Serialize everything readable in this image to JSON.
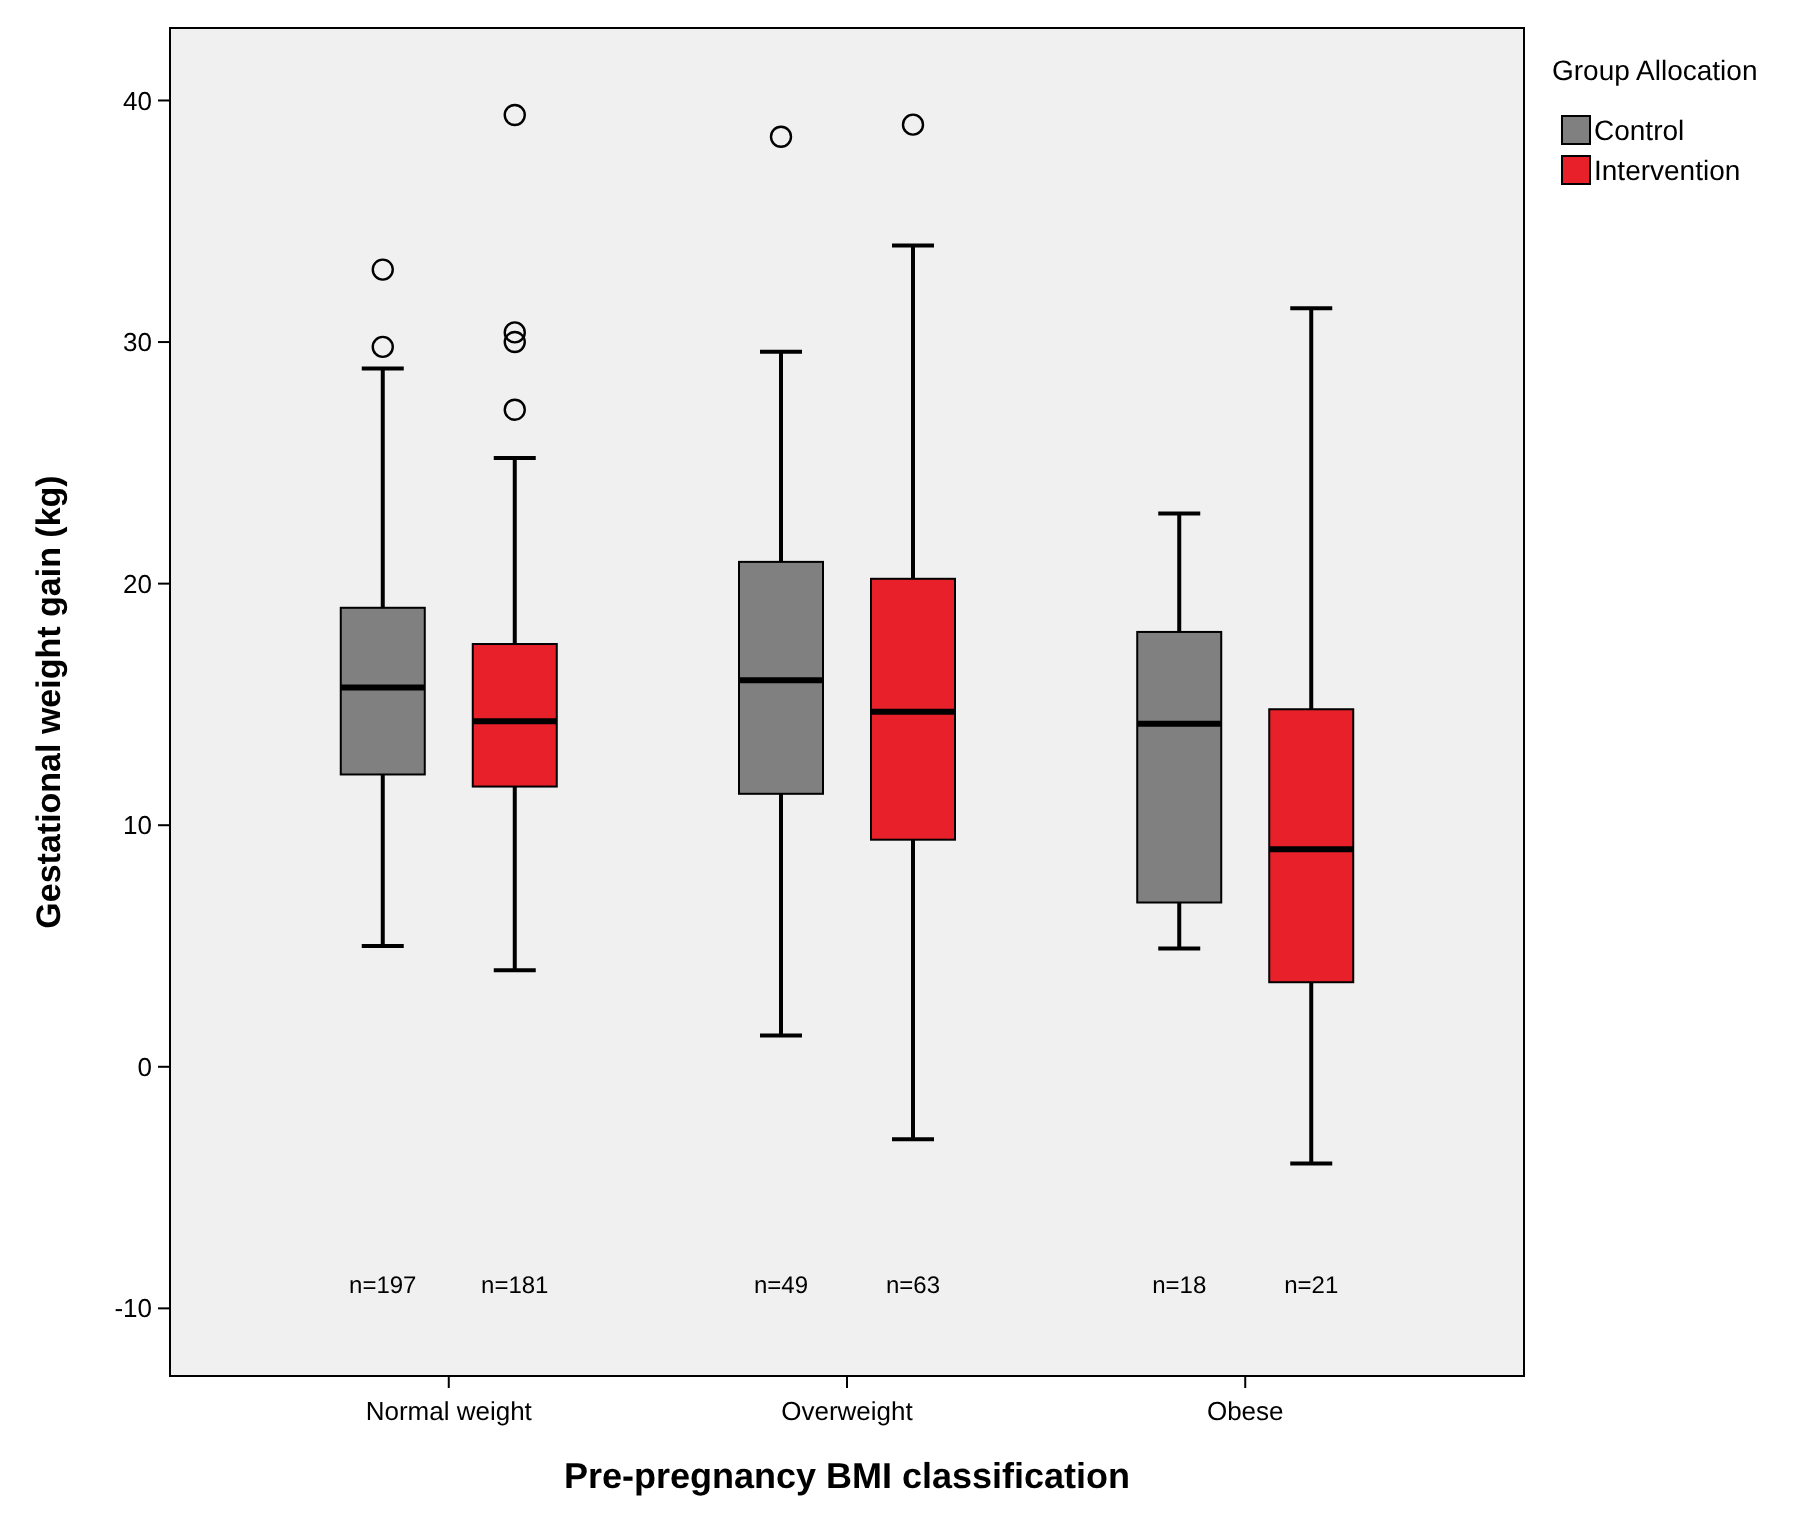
{
  "chart_data": {
    "type": "box",
    "xlabel": "Pre-pregnancy BMI classification",
    "ylabel": "Gestational weight gain (kg)",
    "legend_title": "Group Allocation",
    "categories": [
      "Normal weight",
      "Overweight",
      "Obese"
    ],
    "series": [
      {
        "name": "Control",
        "color": "#808080",
        "boxes": [
          {
            "low": 5,
            "q1": 12.1,
            "median": 15.7,
            "q3": 19,
            "high": 28.9,
            "outliers": [
              33,
              29.8
            ]
          },
          {
            "low": 1.3,
            "q1": 11.3,
            "median": 16,
            "q3": 20.9,
            "high": 29.6,
            "outliers": [
              38.5
            ]
          },
          {
            "low": 4.9,
            "q1": 6.8,
            "median": 14.2,
            "q3": 18,
            "high": 22.9
          }
        ]
      },
      {
        "name": "Intervention",
        "color": "#e8202a",
        "boxes": [
          {
            "low": 4,
            "q1": 11.6,
            "median": 14.3,
            "q3": 17.5,
            "high": 25.2,
            "outliers": [
              30.4,
              30,
              27.2,
              39.4
            ]
          },
          {
            "low": -3,
            "q1": 9.4,
            "median": 14.7,
            "q3": 20.2,
            "high": 34,
            "outliers": [
              39
            ]
          },
          {
            "low": -4,
            "q1": 3.5,
            "median": 9,
            "q3": 14.8,
            "high": 31.4
          }
        ]
      }
    ],
    "ylim": [
      -12.8,
      43
    ],
    "yticks": [
      -10,
      0,
      10,
      20,
      30,
      40
    ],
    "grid": false,
    "legend": "top right",
    "annotations": [
      "n=197",
      "n=181",
      "n=49",
      "n=63",
      "n=18",
      "n=21"
    ]
  }
}
